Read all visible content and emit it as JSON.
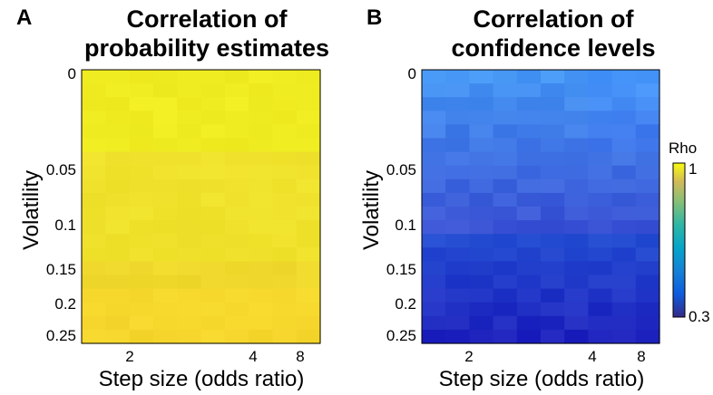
{
  "chart_data": [
    {
      "type": "heatmap",
      "panel_label": "A",
      "title_lines": [
        "Correlation of",
        "probability estimates"
      ],
      "xlabel": "Step size (odds ratio)",
      "ylabel": "Volatility",
      "x_ticks": [
        "2",
        "4",
        "8"
      ],
      "y_ticks": [
        "0",
        "0.05",
        "0.1",
        "0.15",
        "0.2",
        "0.25"
      ],
      "base_color": "#f0e22c"
    },
    {
      "type": "heatmap",
      "panel_label": "B",
      "title_lines": [
        "Correlation of",
        "confidence levels"
      ],
      "xlabel": "Step size (odds ratio)",
      "ylabel": "Volatility",
      "x_ticks": [
        "2",
        "4",
        "8"
      ],
      "y_ticks": [
        "0",
        "0.05",
        "0.1",
        "0.15",
        "0.2",
        "0.25"
      ],
      "base_color": "#2f6bf0"
    }
  ],
  "colorbar": {
    "title": "Rho",
    "max_label": "1",
    "min_label": "0.3",
    "range": [
      0.3,
      1
    ],
    "colormap": "parula"
  }
}
